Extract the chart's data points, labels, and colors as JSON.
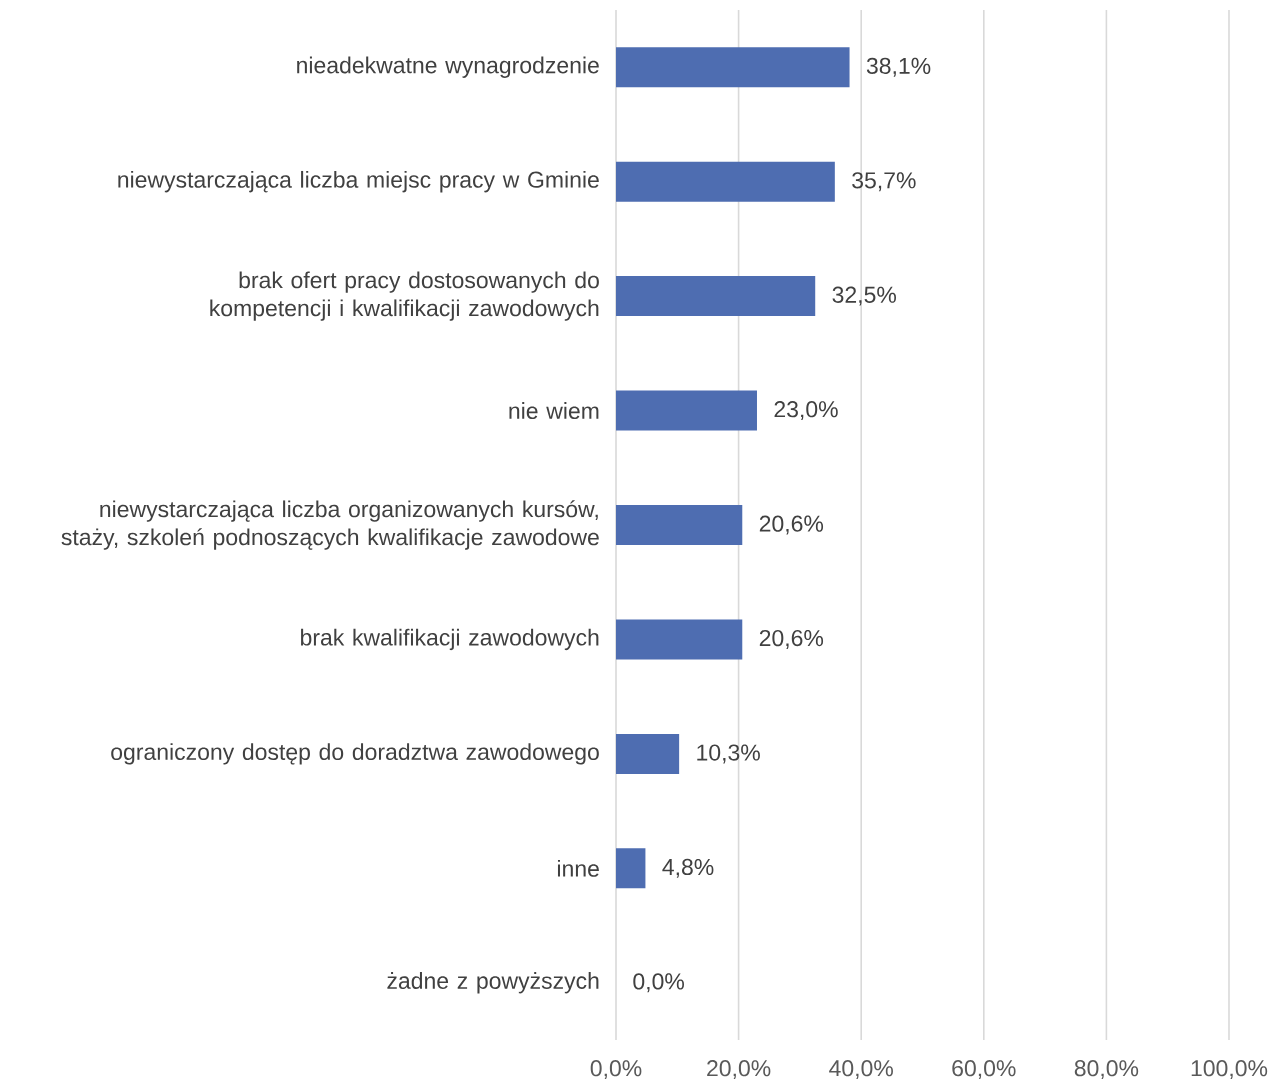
{
  "chart_data": {
    "type": "bar",
    "orientation": "horizontal",
    "categories": [
      "nieadekwatne wynagrodzenie",
      "niewystarczająca liczba miejsc pracy w Gminie",
      "brak ofert pracy dostosowanych do kompetencji i kwalifikacji zawodowych",
      "nie wiem",
      "niewystarczająca liczba organizowanych kursów, staży, szkoleń podnoszących kwalifikacje zawodowe",
      "brak kwalifikacji zawodowych",
      "ograniczony dostęp do doradztwa zawodowego",
      "inne",
      "żadne z powyższych"
    ],
    "values": [
      38.1,
      35.7,
      32.5,
      23.0,
      20.6,
      20.6,
      10.3,
      4.8,
      0.0
    ],
    "value_labels": [
      "38,1%",
      "35,7%",
      "32,5%",
      "23,0%",
      "20,6%",
      "20,6%",
      "10,3%",
      "4,8%",
      "0,0%"
    ],
    "color": "#4e6db1",
    "xlim": [
      0,
      100
    ],
    "xticks": [
      {
        "value": 0,
        "label": "0,0%"
      },
      {
        "value": 20,
        "label": "20,0%"
      },
      {
        "value": 40,
        "label": "40,0%"
      },
      {
        "value": 60,
        "label": "60,0%"
      },
      {
        "value": 80,
        "label": "80,0%"
      },
      {
        "value": 100,
        "label": "100,0%"
      }
    ],
    "grid": "x"
  }
}
